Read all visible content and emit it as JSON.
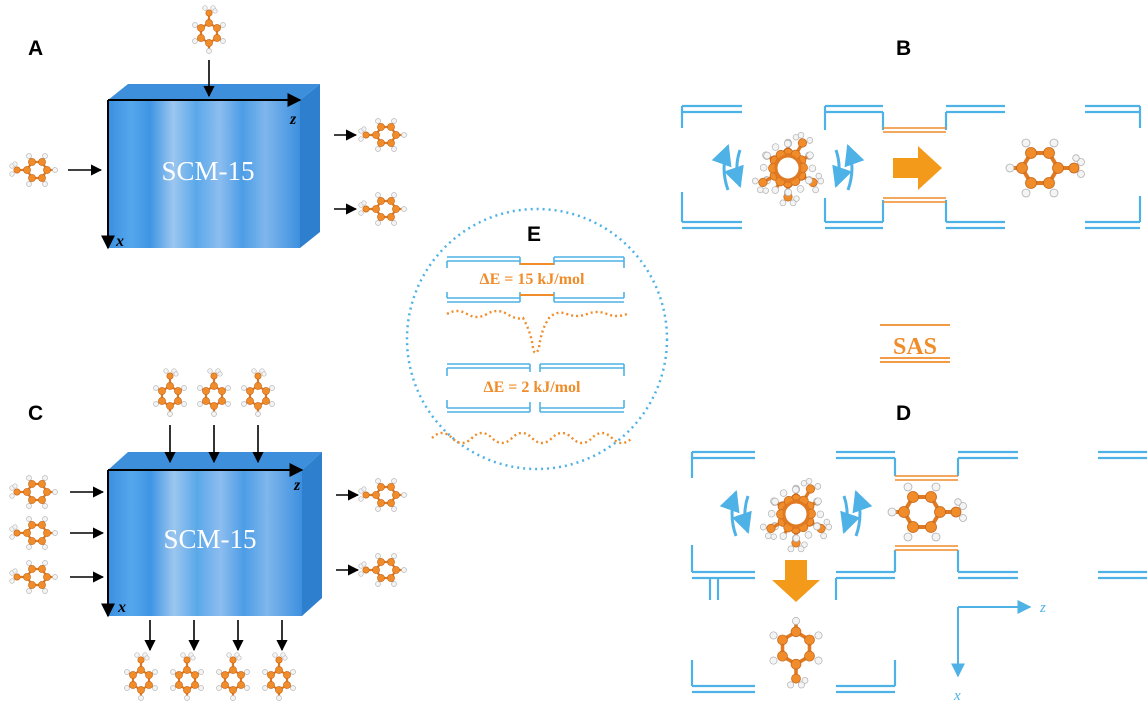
{
  "panels": {
    "a": "A",
    "b": "B",
    "c": "C",
    "d": "D",
    "e": "E"
  },
  "crystal_label": "SCM-15",
  "axes": {
    "z": "z",
    "x": "x"
  },
  "energy_barriers": {
    "high": "ΔE = 15 kJ/mol",
    "low": "ΔE = 2 kJ/mol"
  },
  "sas_label": "SAS",
  "colors": {
    "channel": "#4fb2e6",
    "molecule": "#f08c2a",
    "crystal": "#4a9fe6",
    "crystal_top": "#3d8fdc",
    "crystal_side": "#2f7fcf"
  },
  "icons": [
    "toluene-molecule-icon",
    "flow-arrow-icon",
    "rotation-arrow-icon"
  ]
}
